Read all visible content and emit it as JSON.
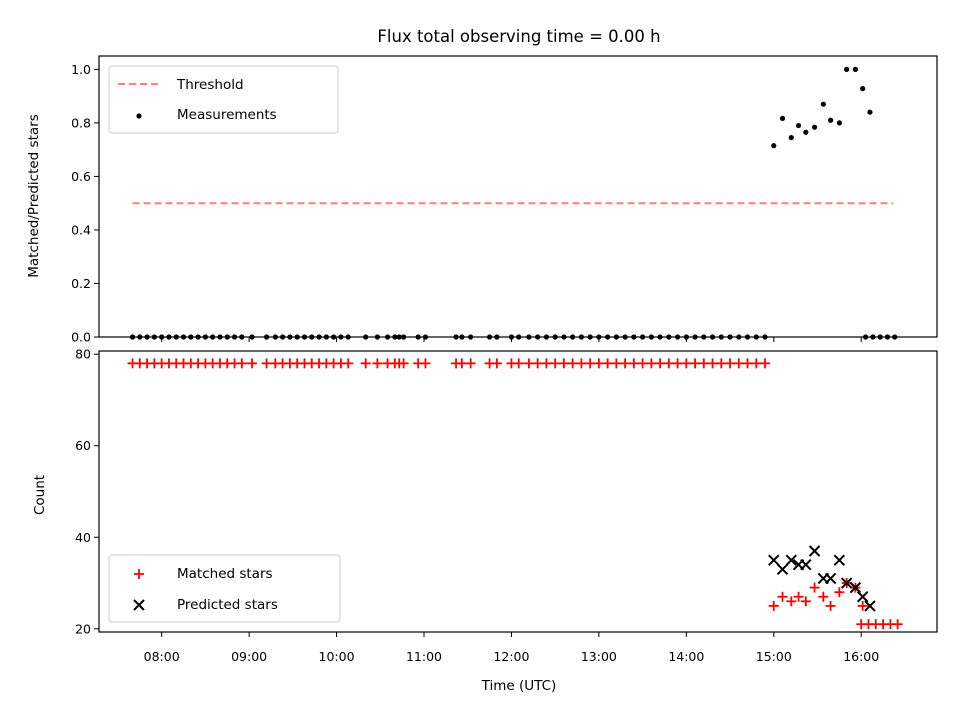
{
  "chart_data": [
    {
      "type": "scatter",
      "title": "Flux total observing time = 0.00 h",
      "xlabel": "",
      "ylabel": "Matched/Predicted stars",
      "xlim": [
        "07:17",
        "16:52"
      ],
      "ylim": [
        0,
        1.05
      ],
      "y_ticks": [
        "0.0",
        "0.2",
        "0.4",
        "0.6",
        "0.8",
        "1.0"
      ],
      "x_tick_labels_shown": false,
      "grid": false,
      "legend": {
        "position": "upper-left",
        "entries": [
          "Threshold",
          "Measurements"
        ]
      },
      "threshold": {
        "name": "Threshold",
        "y": 0.5,
        "x_start": "07:40",
        "x_end": "16:22",
        "color": "#ff7f7f",
        "style": "dashed"
      },
      "series": [
        {
          "name": "Measurements",
          "color": "#000000",
          "marker": "dot",
          "points": [
            [
              "07:40",
              0
            ],
            [
              "07:45",
              0
            ],
            [
              "07:50",
              0
            ],
            [
              "07:55",
              0
            ],
            [
              "08:00",
              0
            ],
            [
              "08:05",
              0
            ],
            [
              "08:10",
              0
            ],
            [
              "08:15",
              0
            ],
            [
              "08:20",
              0
            ],
            [
              "08:25",
              0
            ],
            [
              "08:30",
              0
            ],
            [
              "08:35",
              0
            ],
            [
              "08:40",
              0
            ],
            [
              "08:45",
              0
            ],
            [
              "08:50",
              0
            ],
            [
              "08:55",
              0
            ],
            [
              "09:02",
              0
            ],
            [
              "09:12",
              0
            ],
            [
              "09:18",
              0
            ],
            [
              "09:23",
              0
            ],
            [
              "09:28",
              0
            ],
            [
              "09:33",
              0
            ],
            [
              "09:38",
              0
            ],
            [
              "09:43",
              0
            ],
            [
              "09:48",
              0
            ],
            [
              "09:53",
              0
            ],
            [
              "09:58",
              0
            ],
            [
              "10:03",
              0
            ],
            [
              "10:08",
              0
            ],
            [
              "10:20",
              0
            ],
            [
              "10:28",
              0
            ],
            [
              "10:35",
              0
            ],
            [
              "10:40",
              0
            ],
            [
              "10:43",
              0
            ],
            [
              "10:46",
              0
            ],
            [
              "10:56",
              0
            ],
            [
              "11:01",
              0
            ],
            [
              "11:22",
              0
            ],
            [
              "11:26",
              0
            ],
            [
              "11:32",
              0
            ],
            [
              "11:45",
              0
            ],
            [
              "11:50",
              0
            ],
            [
              "12:00",
              0
            ],
            [
              "12:05",
              0
            ],
            [
              "12:12",
              0
            ],
            [
              "12:18",
              0
            ],
            [
              "12:24",
              0
            ],
            [
              "12:30",
              0
            ],
            [
              "12:36",
              0
            ],
            [
              "12:42",
              0
            ],
            [
              "12:48",
              0
            ],
            [
              "12:54",
              0
            ],
            [
              "13:00",
              0
            ],
            [
              "13:06",
              0
            ],
            [
              "13:12",
              0
            ],
            [
              "13:18",
              0
            ],
            [
              "13:24",
              0
            ],
            [
              "13:30",
              0
            ],
            [
              "13:36",
              0
            ],
            [
              "13:42",
              0
            ],
            [
              "13:48",
              0
            ],
            [
              "13:54",
              0
            ],
            [
              "14:00",
              0
            ],
            [
              "14:06",
              0
            ],
            [
              "14:12",
              0
            ],
            [
              "14:18",
              0
            ],
            [
              "14:24",
              0
            ],
            [
              "14:30",
              0
            ],
            [
              "14:36",
              0
            ],
            [
              "14:42",
              0
            ],
            [
              "14:48",
              0
            ],
            [
              "14:54",
              0
            ],
            [
              "15:00",
              0.715
            ],
            [
              "15:06",
              0.817
            ],
            [
              "15:12",
              0.745
            ],
            [
              "15:17",
              0.79
            ],
            [
              "15:22",
              0.765
            ],
            [
              "15:28",
              0.784
            ],
            [
              "15:34",
              0.87
            ],
            [
              "15:39",
              0.81
            ],
            [
              "15:45",
              0.8
            ],
            [
              "15:50",
              1.0
            ],
            [
              "15:56",
              1.0
            ],
            [
              "16:01",
              0.928
            ],
            [
              "16:06",
              0.84
            ],
            [
              "16:03",
              0
            ],
            [
              "16:08",
              0
            ],
            [
              "16:13",
              0
            ],
            [
              "16:18",
              0
            ],
            [
              "16:23",
              0
            ]
          ]
        }
      ]
    },
    {
      "type": "scatter",
      "title": "",
      "xlabel": "Time (UTC)",
      "ylabel": "Count",
      "xlim": [
        "07:17",
        "16:52"
      ],
      "ylim": [
        19.3,
        80.7
      ],
      "y_ticks": [
        "20",
        "40",
        "60",
        "80"
      ],
      "x_ticks": [
        "08:00",
        "09:00",
        "10:00",
        "11:00",
        "12:00",
        "13:00",
        "14:00",
        "15:00",
        "16:00"
      ],
      "grid": false,
      "legend": {
        "position": "lower-left",
        "entries": [
          "Matched stars",
          "Predicted stars"
        ]
      },
      "series": [
        {
          "name": "Matched stars",
          "color": "#ff0000",
          "marker": "plus",
          "points": [
            [
              "07:40",
              78
            ],
            [
              "07:45",
              78
            ],
            [
              "07:50",
              78
            ],
            [
              "07:55",
              78
            ],
            [
              "08:00",
              78
            ],
            [
              "08:05",
              78
            ],
            [
              "08:10",
              78
            ],
            [
              "08:15",
              78
            ],
            [
              "08:20",
              78
            ],
            [
              "08:25",
              78
            ],
            [
              "08:30",
              78
            ],
            [
              "08:35",
              78
            ],
            [
              "08:40",
              78
            ],
            [
              "08:45",
              78
            ],
            [
              "08:50",
              78
            ],
            [
              "08:55",
              78
            ],
            [
              "09:02",
              78
            ],
            [
              "09:12",
              78
            ],
            [
              "09:18",
              78
            ],
            [
              "09:23",
              78
            ],
            [
              "09:28",
              78
            ],
            [
              "09:33",
              78
            ],
            [
              "09:38",
              78
            ],
            [
              "09:43",
              78
            ],
            [
              "09:48",
              78
            ],
            [
              "09:53",
              78
            ],
            [
              "09:58",
              78
            ],
            [
              "10:03",
              78
            ],
            [
              "10:08",
              78
            ],
            [
              "10:20",
              78
            ],
            [
              "10:28",
              78
            ],
            [
              "10:35",
              78
            ],
            [
              "10:40",
              78
            ],
            [
              "10:43",
              78
            ],
            [
              "10:46",
              78
            ],
            [
              "10:56",
              78
            ],
            [
              "11:01",
              78
            ],
            [
              "11:22",
              78
            ],
            [
              "11:26",
              78
            ],
            [
              "11:32",
              78
            ],
            [
              "11:45",
              78
            ],
            [
              "11:50",
              78
            ],
            [
              "12:00",
              78
            ],
            [
              "12:05",
              78
            ],
            [
              "12:12",
              78
            ],
            [
              "12:18",
              78
            ],
            [
              "12:24",
              78
            ],
            [
              "12:30",
              78
            ],
            [
              "12:36",
              78
            ],
            [
              "12:42",
              78
            ],
            [
              "12:48",
              78
            ],
            [
              "12:54",
              78
            ],
            [
              "13:00",
              78
            ],
            [
              "13:06",
              78
            ],
            [
              "13:12",
              78
            ],
            [
              "13:18",
              78
            ],
            [
              "13:24",
              78
            ],
            [
              "13:30",
              78
            ],
            [
              "13:36",
              78
            ],
            [
              "13:42",
              78
            ],
            [
              "13:48",
              78
            ],
            [
              "13:54",
              78
            ],
            [
              "14:00",
              78
            ],
            [
              "14:06",
              78
            ],
            [
              "14:12",
              78
            ],
            [
              "14:18",
              78
            ],
            [
              "14:24",
              78
            ],
            [
              "14:30",
              78
            ],
            [
              "14:36",
              78
            ],
            [
              "14:42",
              78
            ],
            [
              "14:48",
              78
            ],
            [
              "14:54",
              78
            ],
            [
              "15:00",
              25
            ],
            [
              "15:06",
              27
            ],
            [
              "15:12",
              26
            ],
            [
              "15:17",
              27
            ],
            [
              "15:22",
              26
            ],
            [
              "15:28",
              29
            ],
            [
              "15:34",
              27
            ],
            [
              "15:39",
              25
            ],
            [
              "15:45",
              28
            ],
            [
              "15:50",
              30
            ],
            [
              "15:56",
              29
            ],
            [
              "16:01",
              25
            ],
            [
              "16:00",
              21
            ],
            [
              "16:05",
              21
            ],
            [
              "16:10",
              21
            ],
            [
              "16:15",
              21
            ],
            [
              "16:20",
              21
            ],
            [
              "16:25",
              21
            ]
          ]
        },
        {
          "name": "Predicted stars",
          "color": "#000000",
          "marker": "x",
          "points": [
            [
              "15:00",
              35
            ],
            [
              "15:06",
              33
            ],
            [
              "15:12",
              35
            ],
            [
              "15:17",
              34
            ],
            [
              "15:22",
              34
            ],
            [
              "15:28",
              37
            ],
            [
              "15:34",
              31
            ],
            [
              "15:39",
              31
            ],
            [
              "15:45",
              35
            ],
            [
              "15:50",
              30
            ],
            [
              "15:56",
              29
            ],
            [
              "16:01",
              27
            ],
            [
              "16:06",
              25
            ]
          ]
        }
      ]
    }
  ]
}
